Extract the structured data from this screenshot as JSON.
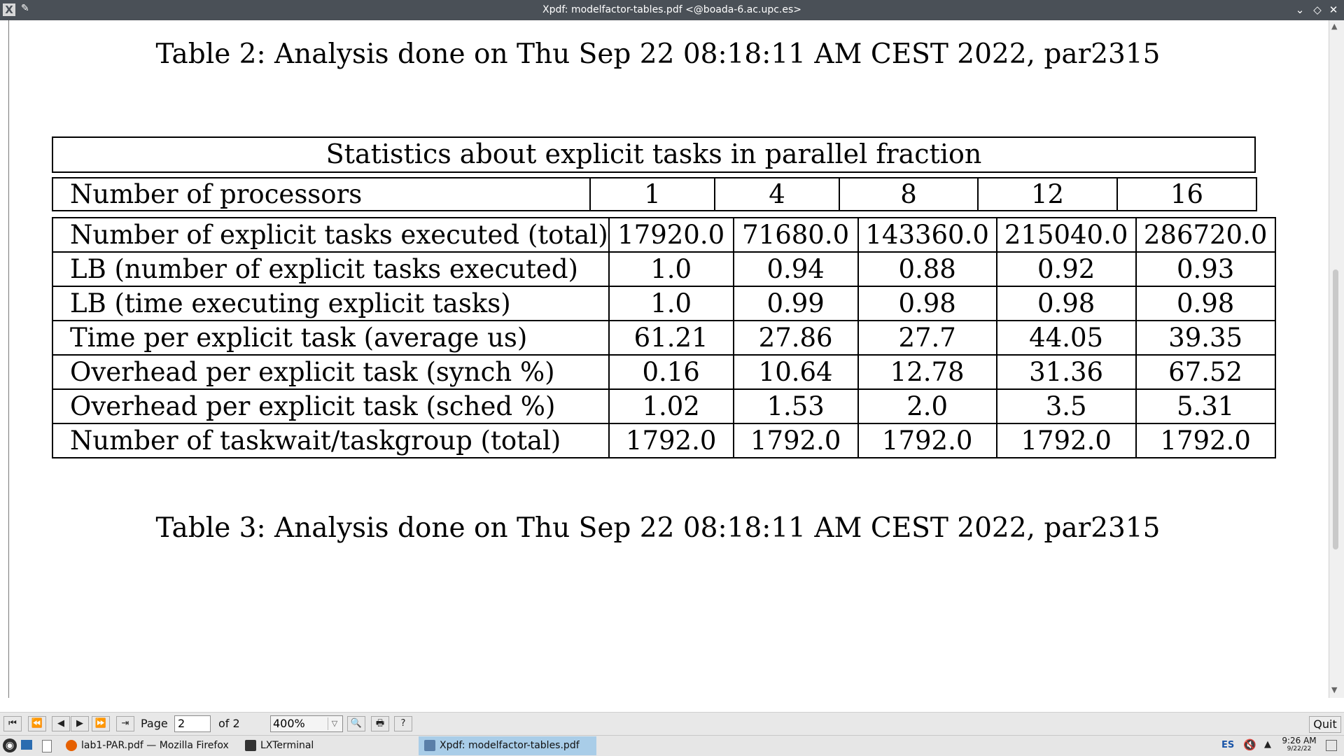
{
  "window": {
    "title": "Xpdf: modelfactor-tables.pdf <@boada-6.ac.upc.es>",
    "app_icon": "X",
    "pin_icon": "✎",
    "minimize_icon": "⌄",
    "maximize_icon": "◇",
    "close_icon": "✕"
  },
  "document": {
    "caption_table2": "Table 2: Analysis done on Thu Sep 22 08:18:11 AM CEST 2022, par2315",
    "caption_table3": "Table 3: Analysis done on Thu Sep 22 08:18:11 AM CEST 2022, par2315",
    "stats_table": {
      "title": "Statistics about explicit tasks in parallel fraction",
      "header": {
        "label": "Number of processors",
        "columns": [
          "1",
          "4",
          "8",
          "12",
          "16"
        ]
      },
      "rows": [
        {
          "label": "Number of explicit tasks executed (total)",
          "values": [
            "17920.0",
            "71680.0",
            "143360.0",
            "215040.0",
            "286720.0"
          ]
        },
        {
          "label": "LB (number of explicit tasks executed)",
          "values": [
            "1.0",
            "0.94",
            "0.88",
            "0.92",
            "0.93"
          ]
        },
        {
          "label": "LB (time executing explicit tasks)",
          "values": [
            "1.0",
            "0.99",
            "0.98",
            "0.98",
            "0.98"
          ]
        },
        {
          "label": "Time per explicit task (average us)",
          "values": [
            "61.21",
            "27.86",
            "27.7",
            "44.05",
            "39.35"
          ]
        },
        {
          "label": "Overhead per explicit task (synch %)",
          "values": [
            "0.16",
            "10.64",
            "12.78",
            "31.36",
            "67.52"
          ]
        },
        {
          "label": "Overhead per explicit task (sched %)",
          "values": [
            "1.02",
            "1.53",
            "2.0",
            "3.5",
            "5.31"
          ]
        },
        {
          "label": "Number of taskwait/taskgroup (total)",
          "values": [
            "1792.0",
            "1792.0",
            "1792.0",
            "1792.0",
            "1792.0"
          ]
        }
      ]
    }
  },
  "toolbar": {
    "buttons": [
      {
        "name": "first-page-button",
        "icon": "⏮"
      },
      {
        "name": "back-10-button",
        "icon": "⏪"
      },
      {
        "name": "prev-page-button",
        "icon": "◀"
      },
      {
        "name": "next-page-button",
        "icon": "▶"
      },
      {
        "name": "forward-10-button",
        "icon": "⏩"
      },
      {
        "name": "go-forward-button",
        "icon": "⇥"
      }
    ],
    "page_label": "Page",
    "page_value": "2",
    "of_label": "of 2",
    "zoom_value": "400%",
    "zoom_dropdown_icon": "▽",
    "find_icon": "🔍",
    "print_icon": "🖶",
    "help_icon": "?",
    "quit_label": "Quit"
  },
  "taskbar": {
    "tasks": [
      {
        "label": "lab1-PAR.pdf — Mozilla Firefox",
        "icon_color": "#e66000"
      },
      {
        "label": "LXTerminal",
        "icon_color": "#333333"
      },
      {
        "label": "Xpdf: modelfactor-tables.pdf",
        "icon_color": "#5a7fa8"
      }
    ],
    "language": "ES",
    "volume_icon": "🔇",
    "tray_arrow": "▲",
    "time": "9:26 AM",
    "date": "9/22/22"
  }
}
